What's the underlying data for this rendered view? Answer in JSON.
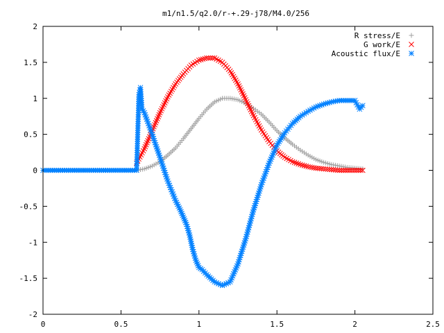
{
  "chart_data": {
    "type": "scatter",
    "title": "m1/n1.5/q2.0/r-+.29-j78/M4.0/256",
    "xlabel": "",
    "ylabel": "",
    "xlim": [
      0,
      2.5
    ],
    "ylim": [
      -2,
      2
    ],
    "xticks": [
      "0",
      "0.5",
      "1",
      "1.5",
      "2",
      "2.5"
    ],
    "yticks": [
      "-2",
      "-1.5",
      "-1",
      "-0.5",
      "0",
      "0.5",
      "1",
      "1.5",
      "2"
    ],
    "grid": false,
    "legend_position": "top-right",
    "series": [
      {
        "name": "R stress/E",
        "marker": "plus",
        "color": "#a0a0a0",
        "x": [
          0.6,
          0.65,
          0.7,
          0.75,
          0.8,
          0.85,
          0.9,
          0.95,
          1.0,
          1.05,
          1.1,
          1.15,
          1.2,
          1.25,
          1.3,
          1.35,
          1.4,
          1.45,
          1.5,
          1.55,
          1.6,
          1.65,
          1.7,
          1.75,
          1.8,
          1.85,
          1.9,
          1.95,
          2.0,
          2.05
        ],
        "y": [
          0.0,
          0.02,
          0.06,
          0.12,
          0.21,
          0.31,
          0.44,
          0.58,
          0.72,
          0.85,
          0.95,
          1.0,
          1.0,
          0.98,
          0.93,
          0.86,
          0.78,
          0.67,
          0.55,
          0.45,
          0.36,
          0.28,
          0.21,
          0.15,
          0.11,
          0.08,
          0.06,
          0.04,
          0.03,
          0.02
        ]
      },
      {
        "name": "G work/E",
        "marker": "cross",
        "color": "#ff0000",
        "x": [
          0.6,
          0.65,
          0.7,
          0.75,
          0.8,
          0.85,
          0.9,
          0.95,
          1.0,
          1.05,
          1.1,
          1.15,
          1.2,
          1.25,
          1.3,
          1.35,
          1.4,
          1.45,
          1.5,
          1.55,
          1.6,
          1.65,
          1.7,
          1.75,
          1.8,
          1.85,
          1.9,
          1.95,
          2.0,
          2.05
        ],
        "y": [
          0.1,
          0.3,
          0.55,
          0.8,
          1.02,
          1.2,
          1.34,
          1.46,
          1.53,
          1.56,
          1.56,
          1.5,
          1.38,
          1.2,
          0.98,
          0.76,
          0.56,
          0.4,
          0.27,
          0.18,
          0.12,
          0.08,
          0.05,
          0.03,
          0.02,
          0.01,
          0.0,
          0.0,
          0.0,
          0.0
        ]
      },
      {
        "name": "Acoustic flux/E",
        "marker": "star",
        "color": "#0080ff",
        "x": [
          0.0,
          0.05,
          0.1,
          0.15,
          0.2,
          0.25,
          0.3,
          0.35,
          0.4,
          0.45,
          0.5,
          0.55,
          0.6,
          0.615,
          0.625,
          0.635,
          0.65,
          0.7,
          0.75,
          0.8,
          0.85,
          0.88,
          0.9,
          0.92,
          0.94,
          0.96,
          0.98,
          1.0,
          1.02,
          1.05,
          1.1,
          1.15,
          1.2,
          1.25,
          1.3,
          1.35,
          1.4,
          1.45,
          1.5,
          1.55,
          1.6,
          1.65,
          1.7,
          1.75,
          1.8,
          1.85,
          1.9,
          1.95,
          2.0,
          2.03,
          2.05
        ],
        "y": [
          0.0,
          0.0,
          0.0,
          0.0,
          0.0,
          0.0,
          0.0,
          0.0,
          0.0,
          0.0,
          0.0,
          0.0,
          0.0,
          1.05,
          1.15,
          0.85,
          0.8,
          0.5,
          0.18,
          -0.15,
          -0.42,
          -0.55,
          -0.65,
          -0.75,
          -0.9,
          -1.1,
          -1.25,
          -1.35,
          -1.38,
          -1.45,
          -1.55,
          -1.6,
          -1.55,
          -1.3,
          -0.95,
          -0.55,
          -0.2,
          0.1,
          0.35,
          0.52,
          0.65,
          0.75,
          0.82,
          0.88,
          0.92,
          0.95,
          0.97,
          0.97,
          0.97,
          0.85,
          0.9
        ]
      }
    ]
  }
}
